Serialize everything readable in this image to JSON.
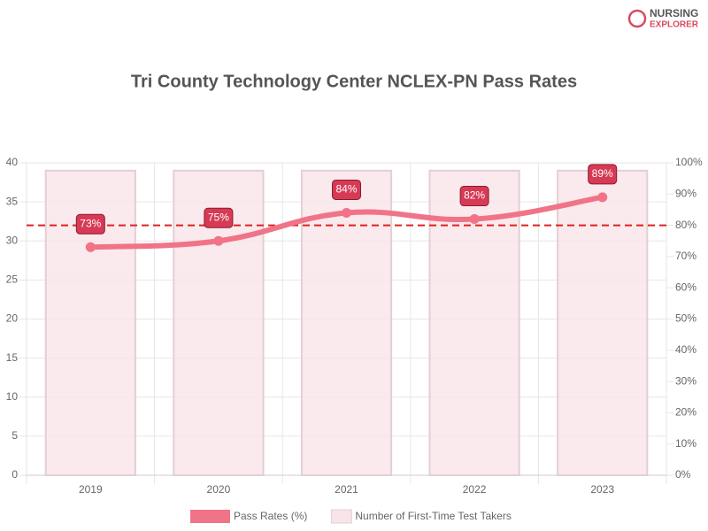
{
  "logo": {
    "line1": "NURSING",
    "line2": "EXPLORER"
  },
  "chart_data": {
    "type": "combo",
    "title": "Tri County Technology Center NCLEX-PN Pass Rates",
    "categories": [
      "2019",
      "2020",
      "2021",
      "2022",
      "2023"
    ],
    "series": [
      {
        "name": "Pass Rates (%)",
        "type": "line",
        "axis": "y2",
        "color": "#f07387",
        "values": [
          73,
          75,
          84,
          82,
          89
        ],
        "value_labels": [
          "73%",
          "75%",
          "84%",
          "82%",
          "89%"
        ]
      },
      {
        "name": "Number of First-Time Test Takers",
        "type": "bar",
        "axis": "y",
        "color": "#f9e4e9",
        "values": [
          39,
          39,
          39,
          39,
          39
        ]
      }
    ],
    "ylim": [
      0,
      40
    ],
    "yticks": [
      0,
      5,
      10,
      15,
      20,
      25,
      30,
      35,
      40
    ],
    "y2lim": [
      0,
      100
    ],
    "y2ticks": [
      {
        "value": 0,
        "label": "0%"
      },
      {
        "value": 10,
        "label": "10%"
      },
      {
        "value": 20,
        "label": "20%"
      },
      {
        "value": 30,
        "label": "30%"
      },
      {
        "value": 40,
        "label": "40%"
      },
      {
        "value": 50,
        "label": "50%"
      },
      {
        "value": 60,
        "label": "60%"
      },
      {
        "value": 70,
        "label": "70%"
      },
      {
        "value": 80,
        "label": "80%"
      },
      {
        "value": 90,
        "label": "90%"
      },
      {
        "value": 100,
        "label": "100%"
      }
    ],
    "reference_line": {
      "value": 80,
      "axis": "y2",
      "color": "#e02020"
    },
    "grid": true,
    "legend": "bottom"
  }
}
